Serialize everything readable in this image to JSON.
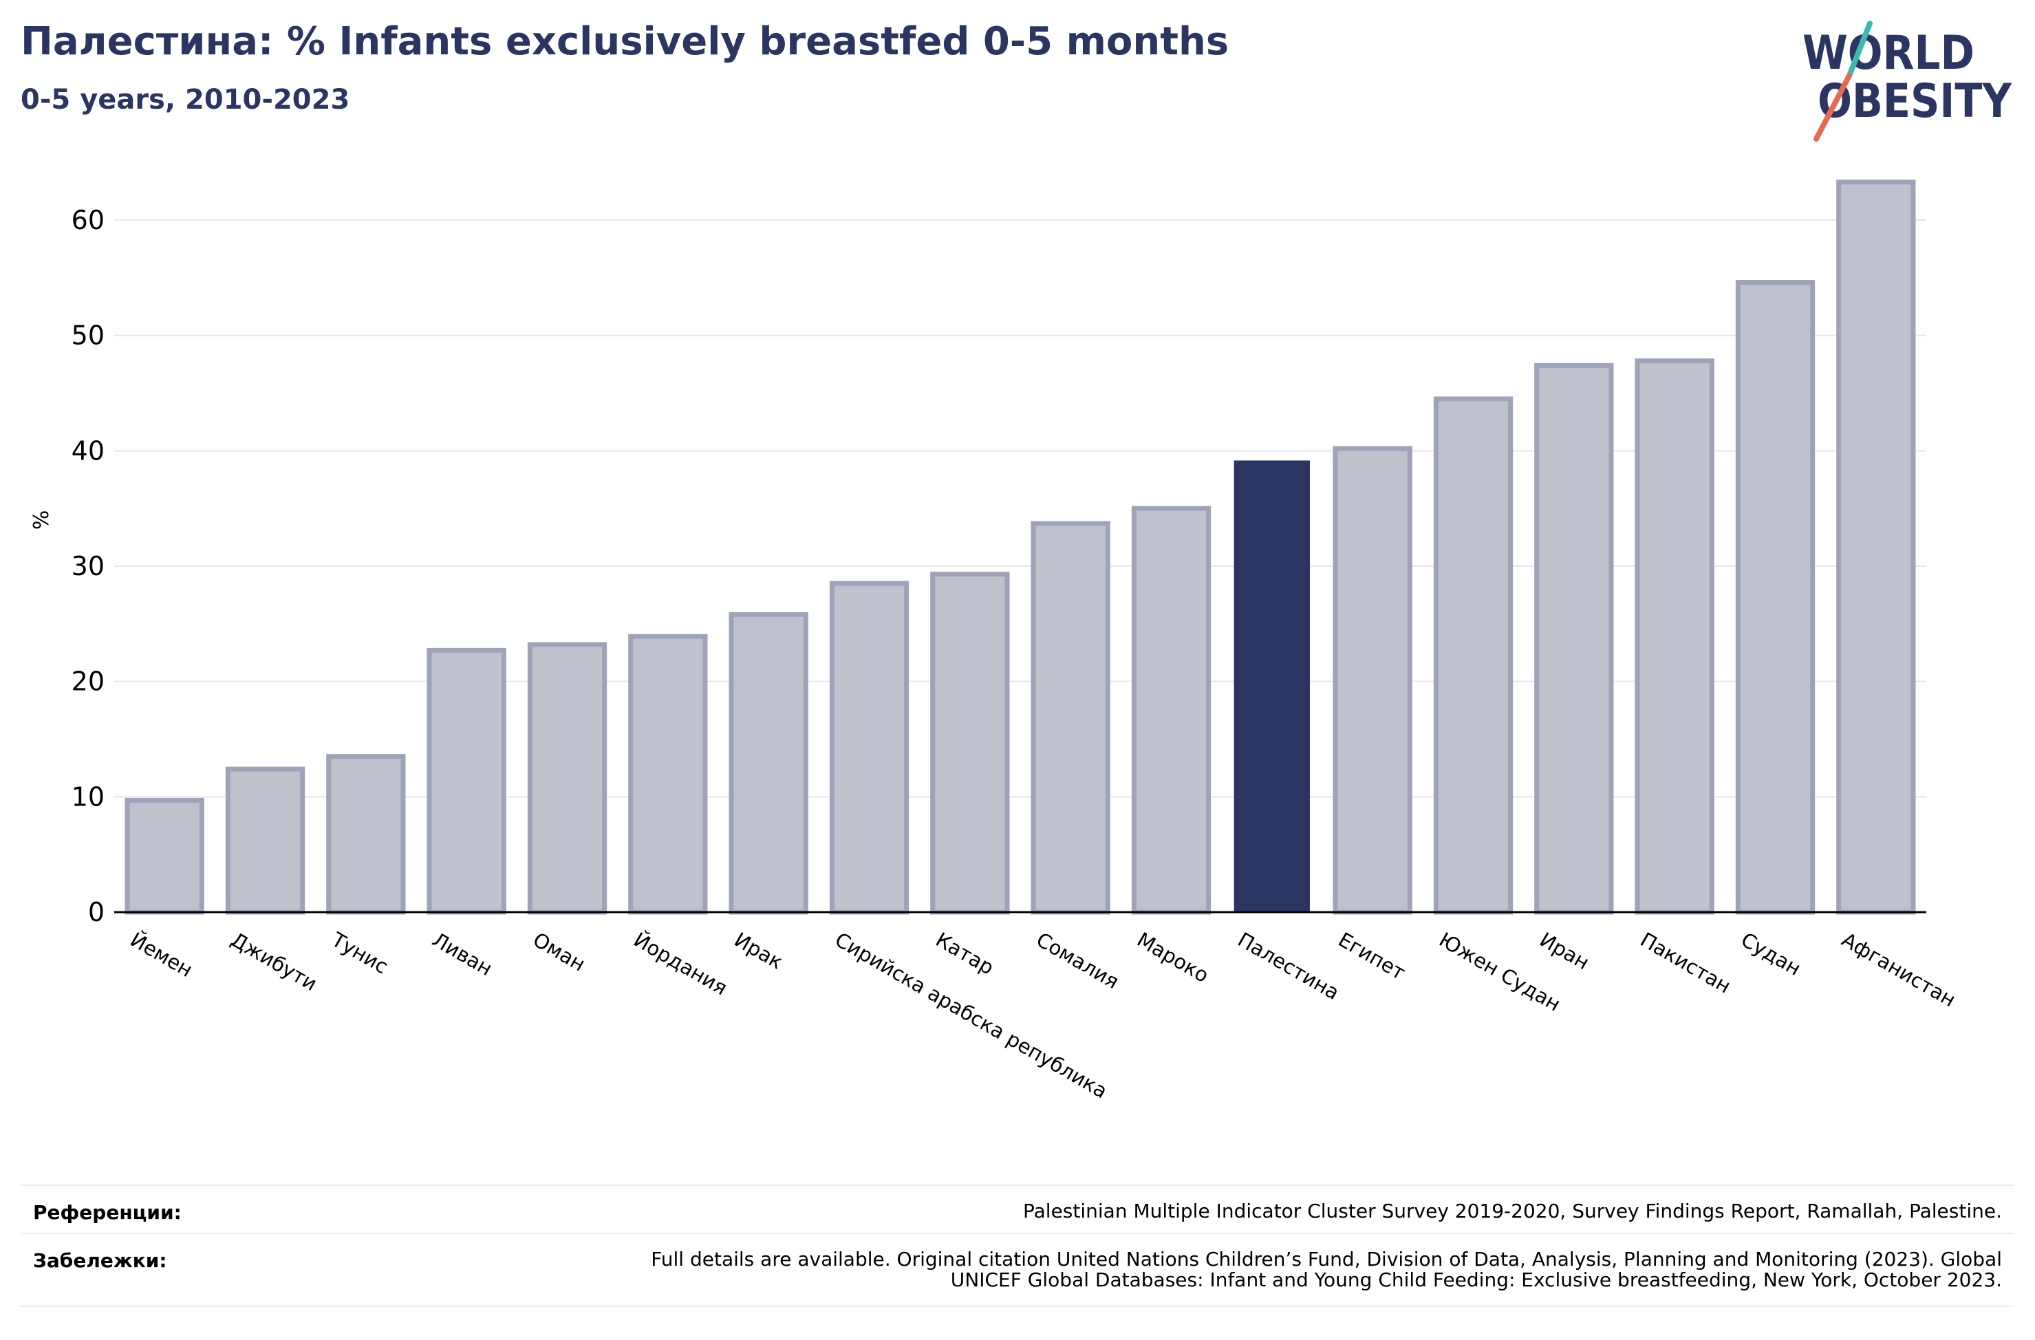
{
  "header": {
    "title": "Палестина: % Infants exclusively breastfed 0-5 months",
    "subtitle": "0-5 years, 2010-2023"
  },
  "logo": {
    "line1": "WORLD",
    "line2": "OBESITY",
    "icon": "world-obesity-logo"
  },
  "colors": {
    "highlight": "#2b3562",
    "bar": "#bfc1cd",
    "bar_edge": "#9fa3ba",
    "text": "#2b3562"
  },
  "chart_data": {
    "type": "bar",
    "ylabel": "%",
    "xlabel": "",
    "ylim": [
      0,
      65
    ],
    "yticks": [
      0,
      10,
      20,
      30,
      40,
      50,
      60
    ],
    "grid": true,
    "highlight": "Палестина",
    "categories": [
      "Йемен",
      "Джибути",
      "Тунис",
      "Ливан",
      "Оман",
      "Йордания",
      "Ирак",
      "Сирийска арабска република",
      "Катар",
      "Сомалия",
      "Мароко",
      "Палестина",
      "Египет",
      "Южен Судан",
      "Иран",
      "Пакистан",
      "Судан",
      "Афганистан"
    ],
    "values": [
      9.7,
      12.4,
      13.5,
      22.7,
      23.2,
      23.9,
      25.8,
      28.5,
      29.3,
      33.7,
      35.0,
      39.1,
      40.2,
      44.5,
      47.4,
      47.8,
      54.6,
      63.3
    ]
  },
  "footer": {
    "references_label": "Референции:",
    "references_text": "Palestinian Multiple Indicator Cluster Survey 2019-2020, Survey Findings Report, Ramallah, Palestine.",
    "notes_label": "Забележки:",
    "notes_line1": "Full details are available. Original citation United Nations Children’s Fund, Division of Data, Analysis, Planning and Monitoring (2023). Global",
    "notes_line2": "UNICEF Global Databases: Infant and Young Child Feeding: Exclusive breastfeeding, New York, October 2023."
  }
}
